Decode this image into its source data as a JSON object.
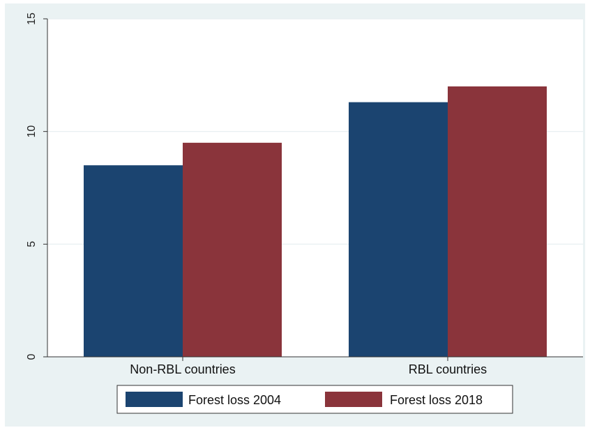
{
  "chart_data": {
    "type": "bar",
    "categories": [
      "Non-RBL countries",
      "RBL countries"
    ],
    "series": [
      {
        "name": "Forest loss 2004",
        "values": [
          8.5,
          11.3
        ],
        "color": "#1b4470"
      },
      {
        "name": "Forest loss 2018",
        "values": [
          9.5,
          12.0
        ],
        "color": "#8a343b"
      }
    ],
    "ylim": [
      0,
      15
    ],
    "yticks": [
      0,
      5,
      10,
      15
    ],
    "ytick_labels": [
      "0",
      "5",
      "10",
      "15"
    ],
    "grid": true,
    "legend_position": "bottom-center"
  },
  "colors": {
    "frame_background": "#eaf2f3",
    "plot_background": "#ffffff",
    "gridline": "#e6eef0"
  }
}
